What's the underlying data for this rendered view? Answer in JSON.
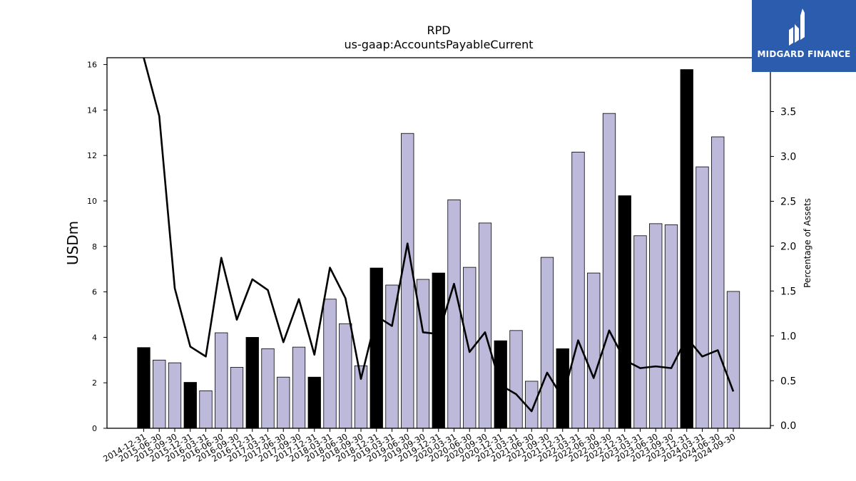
{
  "chart_data": {
    "type": "bar",
    "title": "RPD",
    "subtitle": "us-gaap:AccountsPayableCurrent",
    "ylabel": "USDm",
    "y2label": "Percentage of Assets",
    "ylim": [
      0,
      16.3
    ],
    "y2lim": [
      -0.03,
      4.1
    ],
    "yticks": [
      0,
      2,
      4,
      6,
      8,
      10,
      12,
      14,
      16
    ],
    "y2ticks": [
      0.0,
      0.5,
      1.0,
      1.5,
      2.0,
      2.5,
      3.0,
      3.5
    ],
    "categories": [
      "2014-12-31",
      "2015-06-30",
      "2015-09-30",
      "2015-12-31",
      "2016-03-31",
      "2016-06-30",
      "2016-09-30",
      "2016-12-31",
      "2017-03-31",
      "2017-06-30",
      "2017-09-30",
      "2017-12-31",
      "2018-03-31",
      "2018-06-30",
      "2018-09-30",
      "2018-12-31",
      "2019-03-31",
      "2019-06-30",
      "2019-09-30",
      "2019-12-31",
      "2020-03-31",
      "2020-06-30",
      "2020-09-30",
      "2020-12-31",
      "2021-03-31",
      "2021-06-30",
      "2021-09-30",
      "2021-12-31",
      "2022-03-31",
      "2022-06-30",
      "2022-09-30",
      "2022-12-31",
      "2023-03-31",
      "2023-06-30",
      "2023-09-30",
      "2023-12-31",
      "2024-03-31",
      "2024-06-30",
      "2024-09-30"
    ],
    "series": [
      {
        "kind": "bar",
        "values": [
          3.55,
          3.0,
          2.88,
          2.02,
          1.65,
          4.2,
          2.68,
          4.0,
          3.5,
          2.25,
          3.57,
          2.25,
          5.68,
          4.6,
          2.75,
          7.05,
          6.3,
          12.97,
          6.55,
          6.83,
          10.05,
          7.08,
          9.03,
          3.85,
          4.3,
          2.07,
          7.52,
          3.5,
          12.15,
          6.83,
          13.85,
          10.23,
          8.47,
          9.0,
          8.95,
          15.78,
          11.5,
          12.82,
          6.02
        ],
        "highlight": [
          true,
          false,
          false,
          true,
          false,
          false,
          false,
          true,
          false,
          false,
          false,
          true,
          false,
          false,
          false,
          true,
          false,
          false,
          false,
          true,
          false,
          false,
          false,
          true,
          false,
          false,
          false,
          true,
          false,
          false,
          false,
          true,
          false,
          false,
          false,
          true,
          false,
          false,
          false
        ]
      },
      {
        "kind": "line",
        "axis": "right",
        "values": [
          4.1,
          3.45,
          1.53,
          0.88,
          0.77,
          1.87,
          1.18,
          1.63,
          1.51,
          0.93,
          1.41,
          0.79,
          1.76,
          1.42,
          0.52,
          1.22,
          1.11,
          2.03,
          1.04,
          1.02,
          1.58,
          0.82,
          1.04,
          0.45,
          0.35,
          0.16,
          0.59,
          0.31,
          0.95,
          0.53,
          1.06,
          0.73,
          0.64,
          0.66,
          0.64,
          0.98,
          0.77,
          0.84,
          0.38
        ]
      }
    ],
    "colors": {
      "bar": "#bdb9db",
      "bar_highlight": "#000000",
      "line": "#000000",
      "edge": "#000000"
    },
    "grid": false,
    "legend": "none"
  },
  "logo": {
    "text": "MIDGARD FINANCE",
    "background": "#2b5cad"
  }
}
